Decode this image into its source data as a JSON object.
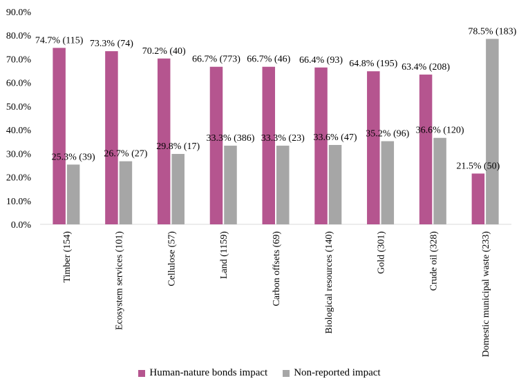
{
  "chart_data": {
    "type": "bar",
    "title": "",
    "xlabel": "",
    "ylabel": "",
    "ylim": [
      0,
      90
    ],
    "yticks": [
      "0.0%",
      "10.0%",
      "20.0%",
      "30.0%",
      "40.0%",
      "50.0%",
      "60.0%",
      "70.0%",
      "80.0%",
      "90.0%"
    ],
    "categories": [
      "Timber (154)",
      "Ecosystem services (101)",
      "Cellulose (57)",
      "Land (1159)",
      "Carbon offsets (69)",
      "Biological resources (140)",
      "Gold (301)",
      "Crude oil (328)",
      "Domestic municipal waste (233)"
    ],
    "series": [
      {
        "name": "Human-nature bonds impact",
        "color": "#b5558f",
        "values": [
          74.7,
          73.3,
          70.2,
          66.7,
          66.7,
          66.4,
          64.8,
          63.4,
          21.5
        ],
        "labels": [
          "74.7% (115)",
          "73.3% (74)",
          "70.2% (40)",
          "66.7% (773)",
          "66.7% (46)",
          "66.4% (93)",
          "64.8% (195)",
          "63.4% (208)",
          "21.5% (50)"
        ]
      },
      {
        "name": "Non-reported impact",
        "color": "#a6a6a6",
        "values": [
          25.3,
          26.7,
          29.8,
          33.3,
          33.3,
          33.6,
          35.2,
          36.6,
          78.5
        ],
        "labels": [
          "25.3% (39)",
          "26.7% (27)",
          "29.8% (17)",
          "33.3% (386)",
          "33.3% (23)",
          "33.6% (47)",
          "35.2% (96)",
          "36.6% (120)",
          "78.5% (183)"
        ]
      }
    ],
    "grid": false,
    "legend_position": "bottom"
  }
}
